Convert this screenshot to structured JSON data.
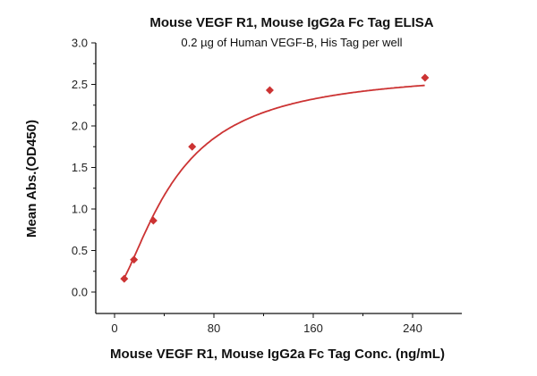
{
  "chart_data": {
    "type": "scatter",
    "title": "Mouse VEGF R1, Mouse IgG2a Fc Tag ELISA",
    "subtitle": "0.2 µg of Human VEGF-B, His Tag per well",
    "xlabel": "Mouse VEGF R1, Mouse IgG2a Fc Tag Conc. (ng/mL)",
    "ylabel": "Mean Abs.(OD450)",
    "xlim": [
      -15,
      280
    ],
    "ylim": [
      -0.25,
      3.0
    ],
    "xticks": [
      0,
      80,
      160,
      240
    ],
    "xtick_labels": [
      "0",
      "80",
      "160",
      "240"
    ],
    "yticks": [
      0.0,
      0.5,
      1.0,
      1.5,
      2.0,
      2.5,
      3.0
    ],
    "ytick_labels": [
      "0.0",
      "0.5",
      "1.0",
      "1.5",
      "2.0",
      "2.5",
      "3.0"
    ],
    "grid": false,
    "legend": "none",
    "series": [
      {
        "name": "Mean Abs.",
        "x": [
          7.8,
          15.6,
          31.25,
          62.5,
          125,
          250
        ],
        "y": [
          0.16,
          0.39,
          0.86,
          1.75,
          2.43,
          2.58
        ],
        "marker": "diamond",
        "color": "#cc3333",
        "fit": "four-parameter logistic"
      }
    ]
  }
}
